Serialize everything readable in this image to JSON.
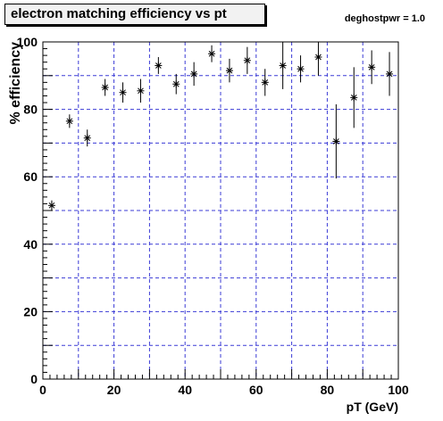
{
  "title": "electron matching efficiency vs pt",
  "subtitle": "deghostpwr = 1.0",
  "chart_data": {
    "type": "scatter",
    "title": "electron matching efficiency vs pt",
    "subtitle": "deghostpwr = 1.0",
    "xlabel": "pT (GeV)",
    "ylabel": "% efficiency",
    "xlim": [
      0,
      100
    ],
    "ylim": [
      0,
      100
    ],
    "x_ticks": [
      0,
      20,
      40,
      60,
      80,
      100
    ],
    "y_ticks": [
      0,
      20,
      40,
      60,
      80,
      100
    ],
    "grid": true,
    "marker": "asterisk",
    "x": [
      2.5,
      7.5,
      12.5,
      17.5,
      22.5,
      27.5,
      32.5,
      37.5,
      42.5,
      47.5,
      52.5,
      57.5,
      62.5,
      67.5,
      72.5,
      77.5,
      82.5,
      87.5,
      92.5,
      97.5
    ],
    "y": [
      51.5,
      76.5,
      71.5,
      86.5,
      85.0,
      85.5,
      93.0,
      87.5,
      90.5,
      96.5,
      91.5,
      94.5,
      88.0,
      93.0,
      92.0,
      95.5,
      70.5,
      83.5,
      92.5,
      90.5
    ],
    "y_err": [
      1.5,
      2.0,
      2.5,
      2.5,
      3.0,
      3.5,
      2.5,
      3.0,
      3.5,
      2.5,
      3.5,
      4.0,
      4.0,
      7.0,
      4.0,
      5.5,
      11.0,
      9.0,
      5.0,
      6.5
    ]
  },
  "colors": {
    "grid": "#3b3bd6",
    "marker": "#000000",
    "title_bg": "#f2f2f2"
  }
}
